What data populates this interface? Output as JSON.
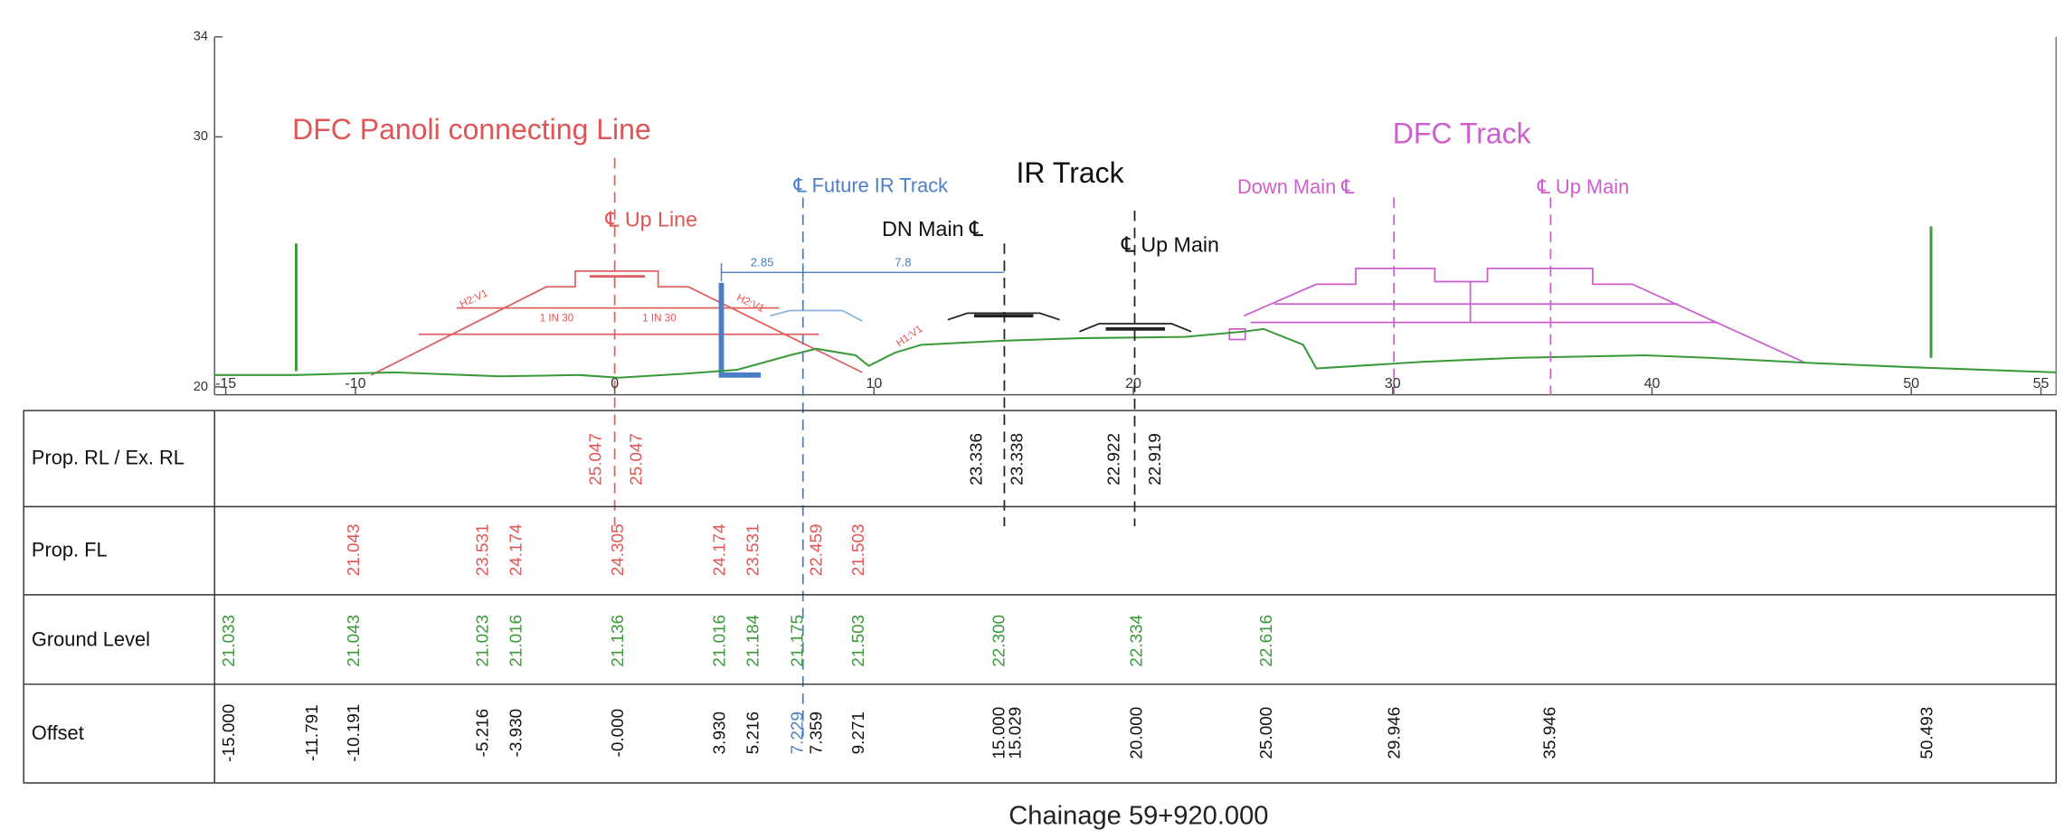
{
  "axis": {
    "yticks": [
      34,
      30,
      20
    ],
    "xticks": [
      -15,
      -10,
      0,
      10,
      20,
      30,
      40,
      50,
      55
    ]
  },
  "annotations": {
    "dfc_panoli": "DFC Panoli connecting Line",
    "dfc_track": "DFC Track",
    "ir_track": "IR Track",
    "future_ir": "℄ Future IR Track",
    "up_line": "℄ Up Line",
    "dn_main": "DN Main ℄",
    "ir_up_main": "℄ Up Main",
    "down_main": "Down Main ℄",
    "dfc_up_main": "℄ Up Main",
    "dim_1": "2.85",
    "dim_2": "7.8",
    "slope_1": "H2:V1",
    "slope_2": "H2:V1",
    "slope_3": "H1:V1",
    "grade_1": "1 IN 30",
    "grade_2": "1 IN 30"
  },
  "table": {
    "row_labels": [
      "Prop. RL / Ex. RL",
      "Prop. FL",
      "Ground Level",
      "Offset"
    ],
    "offsets": [
      "-15.000",
      "-11.791",
      "-10.191",
      "-5.216",
      "-3.930",
      "-0.000",
      "3.930",
      "5.216",
      "7.229",
      "7.359",
      "9.271",
      "15.000",
      "15.029",
      "20.000",
      "25.000",
      "29.946",
      "35.946",
      "50.493"
    ],
    "prop_rl_ex_rl": [
      null,
      null,
      null,
      null,
      null,
      [
        "25.047",
        "25.047"
      ],
      null,
      null,
      null,
      null,
      null,
      [
        "23.336",
        "23.338"
      ],
      null,
      [
        "22.922",
        "22.919"
      ],
      null,
      null,
      null,
      null
    ],
    "prop_fl": [
      null,
      null,
      "21.043",
      "23.531",
      "24.174",
      "24.305",
      "24.174",
      "23.531",
      null,
      "22.459",
      "21.503",
      null,
      null,
      null,
      null,
      null,
      null,
      null
    ],
    "ground_level": [
      "21.033",
      null,
      "21.043",
      "21.023",
      "21.016",
      "21.136",
      "21.016",
      "21.184",
      "21.175",
      null,
      "21.503",
      "22.300",
      null,
      "22.334",
      "22.616",
      null,
      null,
      null
    ]
  },
  "footer": "Chainage 59+920.000"
}
